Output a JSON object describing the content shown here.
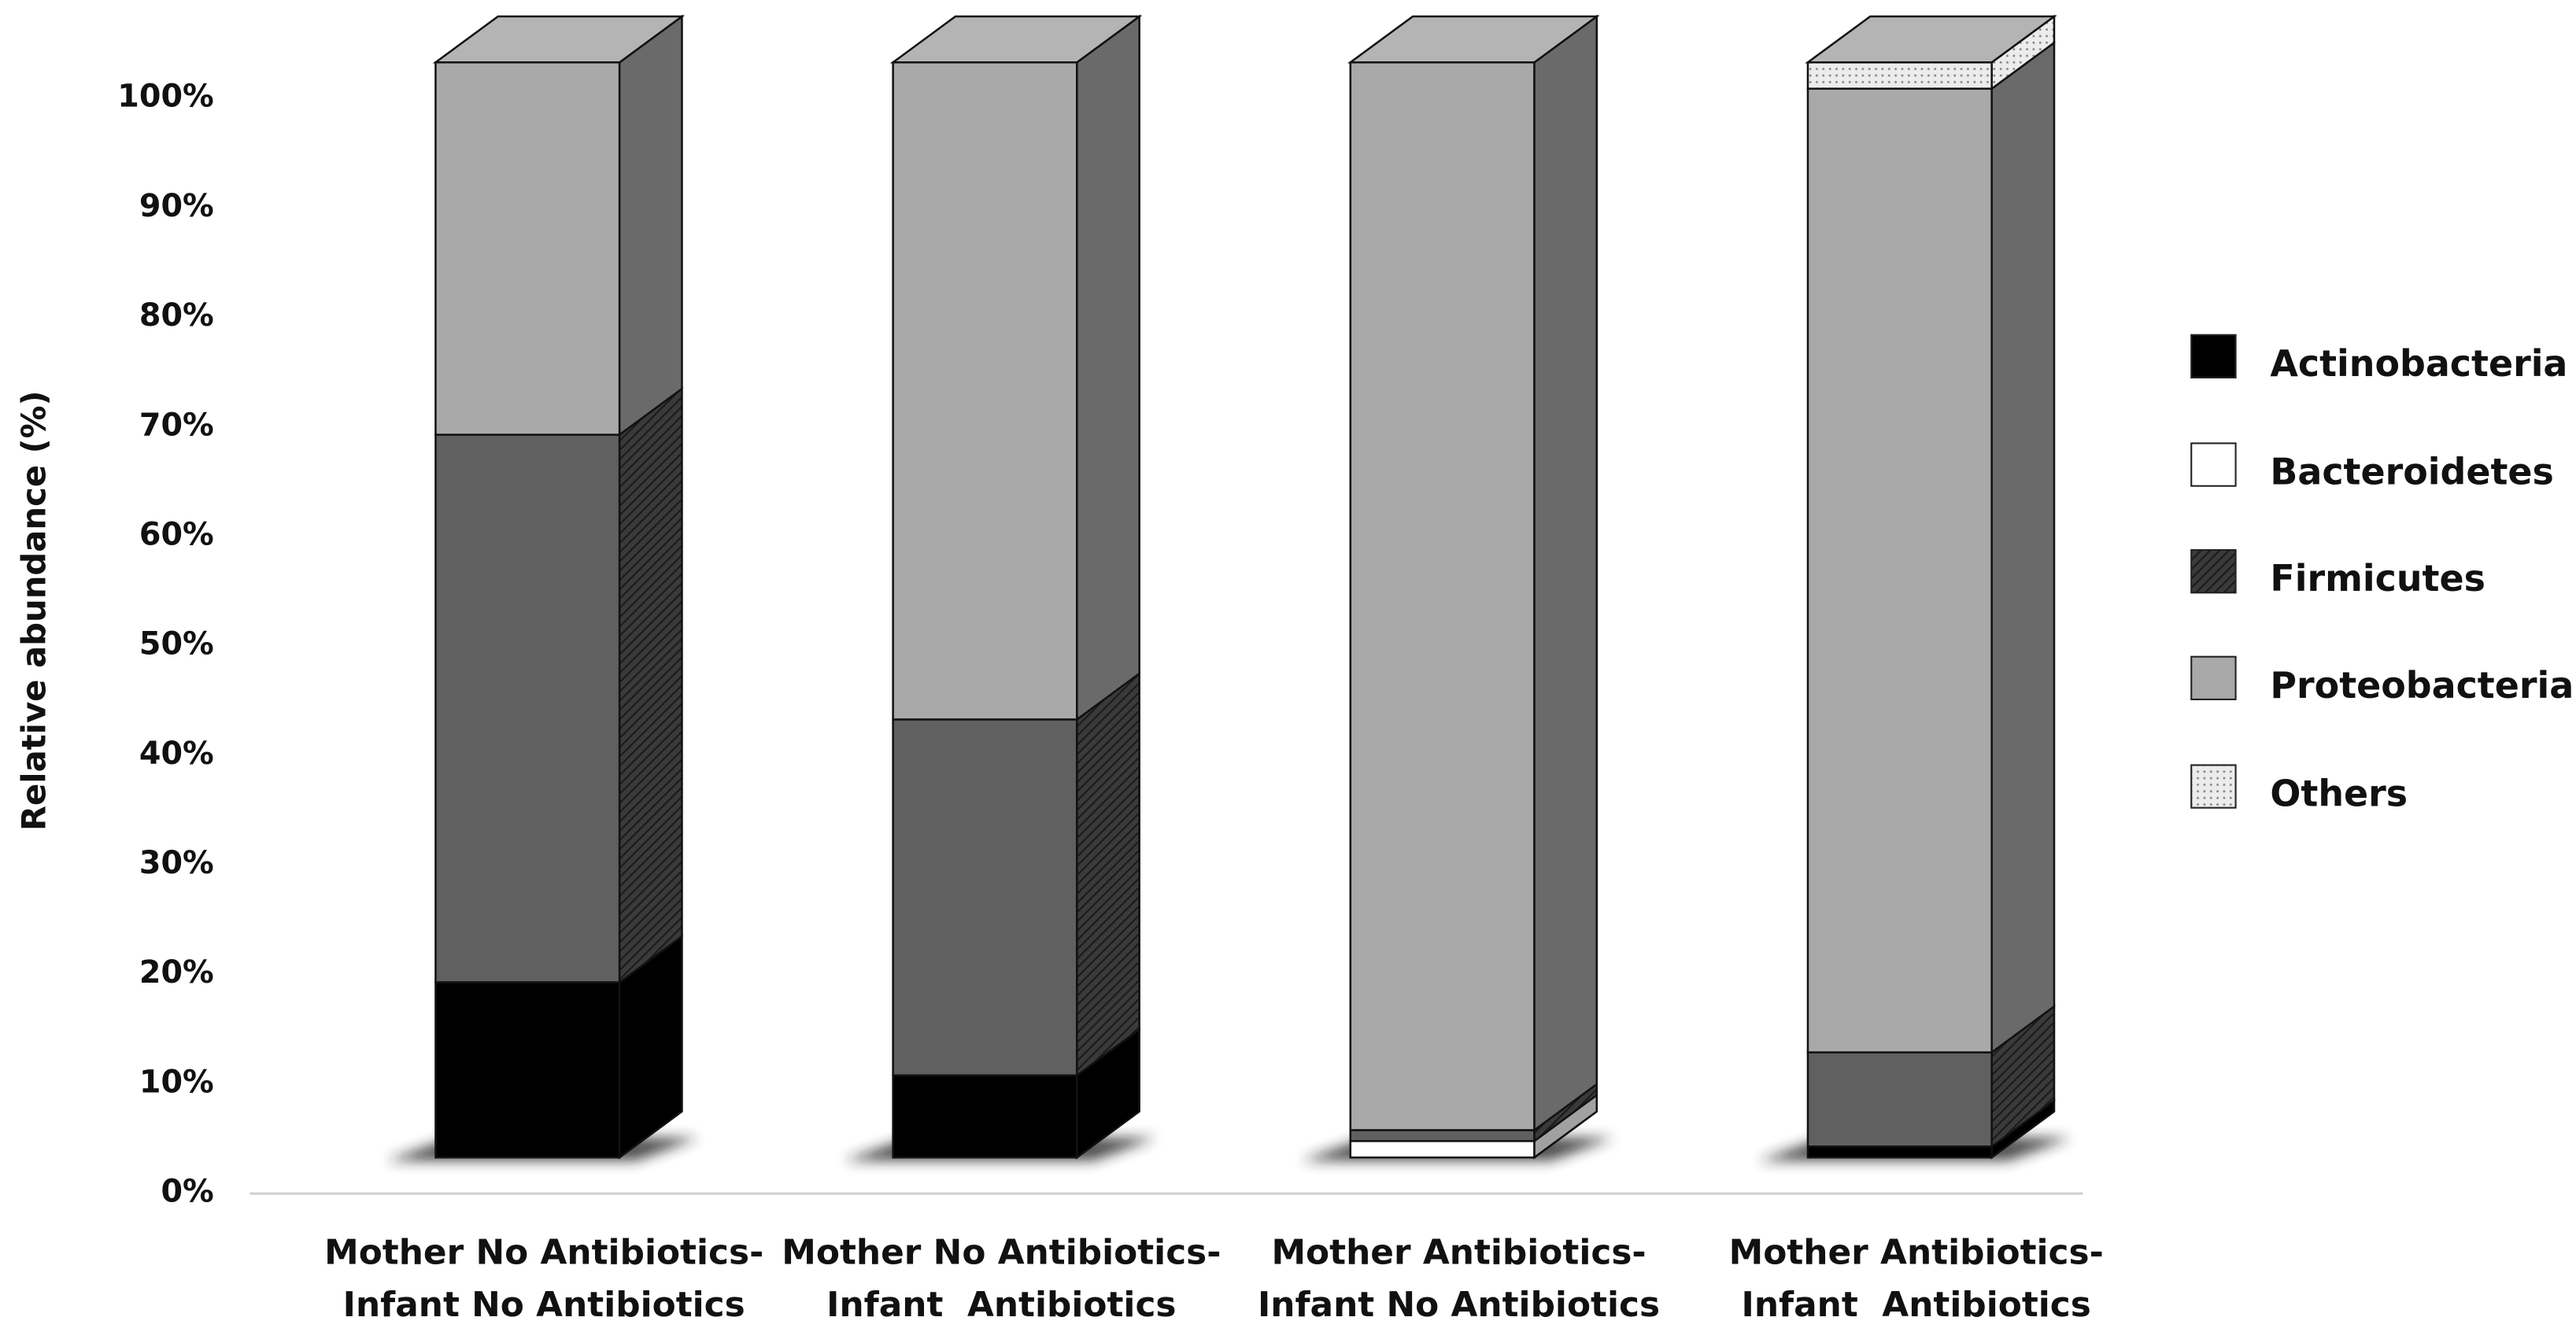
{
  "chart_data": {
    "type": "bar3d-stacked",
    "y_label": "Relative abundance (%)",
    "categories": [
      [
        "Mother No Antibiotics-",
        "Infant No Antibiotics"
      ],
      [
        "Mother No Antibiotics-",
        "Infant  Antibiotics"
      ],
      [
        "Mother Antibiotics-",
        "Infant No Antibiotics"
      ],
      [
        "Mother Antibiotics-",
        "Infant  Antibiotics"
      ]
    ],
    "series": [
      {
        "name": "Actinobacteria",
        "color": "#000000",
        "values": [
          16,
          7.5,
          0,
          1
        ]
      },
      {
        "name": "Bacteroidetes",
        "color": "#ffffff",
        "values": [
          0,
          0,
          1.5,
          0
        ]
      },
      {
        "name": "Firmicutes",
        "color": "#606060",
        "pattern": "hatch",
        "values": [
          50,
          32.5,
          1,
          8.6
        ]
      },
      {
        "name": "Proteobacteria",
        "color": "#a9a9a9",
        "values": [
          34,
          60,
          97.5,
          88
        ]
      },
      {
        "name": "Others",
        "color": "#e4e4e4",
        "pattern": "dots",
        "values": [
          0,
          0,
          0,
          2.4
        ]
      }
    ],
    "ylim": [
      0,
      100
    ],
    "yticks": [
      {
        "value": 0,
        "label": "0%"
      },
      {
        "value": 10,
        "label": "10%"
      },
      {
        "value": 20,
        "label": "20%"
      },
      {
        "value": 30,
        "label": "30%"
      },
      {
        "value": 40,
        "label": "40%"
      },
      {
        "value": 50,
        "label": "50%"
      },
      {
        "value": 60,
        "label": "60%"
      },
      {
        "value": 70,
        "label": "70%"
      },
      {
        "value": 80,
        "label": "80%"
      },
      {
        "value": 90,
        "label": "90%"
      },
      {
        "value": 100,
        "label": "100%"
      }
    ],
    "legend": "right"
  }
}
